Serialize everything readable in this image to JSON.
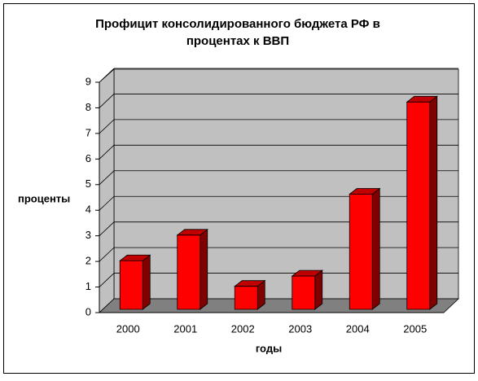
{
  "chart_data": {
    "type": "bar3d",
    "title": [
      "Профицит  консолидированного бюджета  РФ в",
      "процентах к ВВП"
    ],
    "y_label": "проценты",
    "x_label": "годы",
    "categories": [
      "2000",
      "2001",
      "2002",
      "2003",
      "2004",
      "2005"
    ],
    "values": [
      1.9,
      2.9,
      0.9,
      1.3,
      4.5,
      8.1
    ],
    "color": "#ff0000",
    "ylim": [
      0,
      9
    ],
    "yticks": [
      0,
      1,
      2,
      3,
      4,
      5,
      6,
      7,
      8,
      9
    ],
    "grid": true
  }
}
